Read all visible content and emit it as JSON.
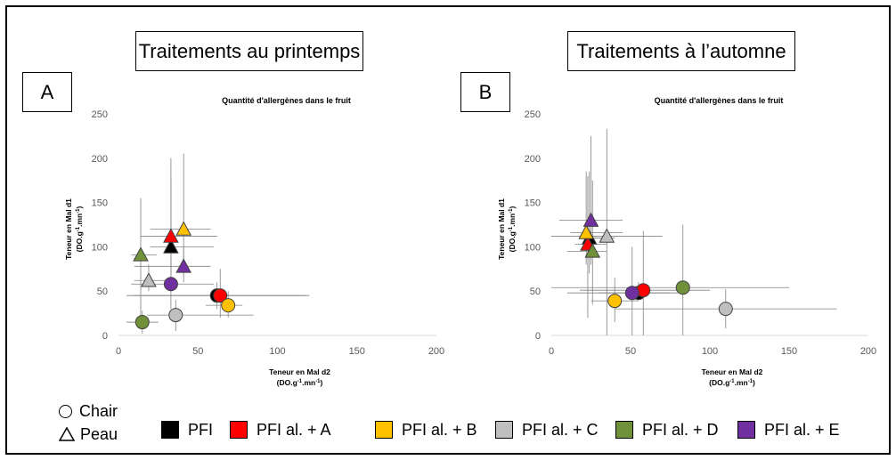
{
  "panels": [
    {
      "letter": "A",
      "title": "Traitements au printemps"
    },
    {
      "letter": "B",
      "title": "Traitements à l’automne"
    }
  ],
  "shapes_legend": [
    {
      "shape": "circle",
      "label": "Chair"
    },
    {
      "shape": "triangle",
      "label": "Peau"
    }
  ],
  "treatments": [
    {
      "label": "PFI",
      "color": "#000000"
    },
    {
      "label": "PFI al. + A",
      "color": "#ff0000"
    },
    {
      "label": "PFI al. + B",
      "color": "#ffc000"
    },
    {
      "label": "PFI al. + C",
      "color": "#bfbfbf"
    },
    {
      "label": "PFI al. + D",
      "color": "#70913a"
    },
    {
      "label": "PFI al. + E",
      "color": "#7030a0"
    }
  ],
  "chart_data": [
    {
      "type": "scatter",
      "title": "Quantité d'allergènes dans le fruit",
      "xlabel_line1": "Teneur en Mal d2",
      "xlabel_line2": "(DO.g-1.mn-1)",
      "ylabel_line1": "Teneur en Mal d1",
      "ylabel_line2": "(DO.g-1.mn-1)",
      "xlim": [
        0,
        200
      ],
      "ylim": [
        0,
        250
      ],
      "xticks": [
        "0",
        "50",
        "100",
        "150",
        "200"
      ],
      "yticks": [
        "0",
        "50",
        "100",
        "150",
        "200",
        "250"
      ],
      "grid": false,
      "points": [
        {
          "treatment": "PFI",
          "shape": "triangle",
          "x": 33,
          "y": 100,
          "xerr": [
            20,
            60
          ],
          "yerr": [
            70,
            130
          ]
        },
        {
          "treatment": "PFI al. + A",
          "shape": "triangle",
          "x": 33,
          "y": 112,
          "xerr": [
            14,
            62
          ],
          "yerr": [
            60,
            200
          ]
        },
        {
          "treatment": "PFI al. + B",
          "shape": "triangle",
          "x": 41,
          "y": 120,
          "xerr": [
            20,
            58
          ],
          "yerr": [
            70,
            205
          ]
        },
        {
          "treatment": "PFI al. + C",
          "shape": "triangle",
          "x": 19,
          "y": 62,
          "xerr": [
            10,
            30
          ],
          "yerr": [
            50,
            80
          ]
        },
        {
          "treatment": "PFI al. + D",
          "shape": "triangle",
          "x": 14,
          "y": 91,
          "xerr": [
            8,
            24
          ],
          "yerr": [
            20,
            155
          ]
        },
        {
          "treatment": "PFI al. + E",
          "shape": "triangle",
          "x": 41,
          "y": 78,
          "xerr": [
            10,
            58
          ],
          "yerr": [
            60,
            100
          ]
        },
        {
          "treatment": "PFI",
          "shape": "circle",
          "x": 62,
          "y": 45,
          "xerr": [
            5,
            120
          ],
          "yerr": [
            30,
            60
          ]
        },
        {
          "treatment": "PFI al. + A",
          "shape": "circle",
          "x": 64,
          "y": 45,
          "xerr": [
            10,
            118
          ],
          "yerr": [
            20,
            75
          ]
        },
        {
          "treatment": "PFI al. + B",
          "shape": "circle",
          "x": 69,
          "y": 34,
          "xerr": [
            55,
            78
          ],
          "yerr": [
            20,
            50
          ]
        },
        {
          "treatment": "PFI al. + C",
          "shape": "circle",
          "x": 36,
          "y": 23,
          "xerr": [
            18,
            85
          ],
          "yerr": [
            5,
            40
          ]
        },
        {
          "treatment": "PFI al. + D",
          "shape": "circle",
          "x": 15,
          "y": 15,
          "xerr": [
            5,
            25
          ],
          "yerr": [
            2,
            28
          ]
        },
        {
          "treatment": "PFI al. + E",
          "shape": "circle",
          "x": 33,
          "y": 58,
          "xerr": [
            8,
            60
          ],
          "yerr": [
            30,
            177
          ]
        }
      ]
    },
    {
      "type": "scatter",
      "title": "Quantité d'allergènes dans le fruit",
      "xlabel_line1": "Teneur en Mal d2",
      "xlabel_line2": "(DO.g-1.mn-1)",
      "ylabel_line1": "Teneur en Mal d1",
      "ylabel_line2": "(DO.g-1.mn-1)",
      "xlim": [
        0,
        200
      ],
      "ylim": [
        0,
        250
      ],
      "xticks": [
        "0",
        "50",
        "100",
        "150",
        "200"
      ],
      "yticks": [
        "0",
        "50",
        "100",
        "150",
        "200",
        "250"
      ],
      "grid": false,
      "points": [
        {
          "treatment": "PFI",
          "shape": "triangle",
          "x": 24,
          "y": 110,
          "xerr": [
            18,
            40
          ],
          "yerr": [
            70,
            185
          ]
        },
        {
          "treatment": "PFI al. + A",
          "shape": "triangle",
          "x": 23,
          "y": 103,
          "xerr": [
            15,
            35
          ],
          "yerr": [
            20,
            180
          ]
        },
        {
          "treatment": "PFI al. + B",
          "shape": "triangle",
          "x": 22,
          "y": 116,
          "xerr": [
            12,
            45
          ],
          "yerr": [
            80,
            185
          ]
        },
        {
          "treatment": "PFI al. + C",
          "shape": "triangle",
          "x": 35,
          "y": 112,
          "xerr": [
            0,
            70
          ],
          "yerr": [
            0,
            233
          ]
        },
        {
          "treatment": "PFI al. + D",
          "shape": "triangle",
          "x": 26,
          "y": 95,
          "xerr": [
            10,
            35
          ],
          "yerr": [
            35,
            175
          ]
        },
        {
          "treatment": "PFI al. + E",
          "shape": "triangle",
          "x": 25,
          "y": 130,
          "xerr": [
            5,
            45
          ],
          "yerr": [
            80,
            225
          ]
        },
        {
          "treatment": "PFI",
          "shape": "circle",
          "x": 55,
          "y": 48,
          "xerr": [
            30,
            80
          ],
          "yerr": [
            40,
            60
          ]
        },
        {
          "treatment": "PFI al. + A",
          "shape": "circle",
          "x": 58,
          "y": 51,
          "xerr": [
            18,
            100
          ],
          "yerr": [
            0,
            118
          ]
        },
        {
          "treatment": "PFI al. + B",
          "shape": "circle",
          "x": 40,
          "y": 39,
          "xerr": [
            25,
            55
          ],
          "yerr": [
            15,
            65
          ]
        },
        {
          "treatment": "PFI al. + C",
          "shape": "circle",
          "x": 110,
          "y": 30,
          "xerr": [
            40,
            180
          ],
          "yerr": [
            8,
            52
          ]
        },
        {
          "treatment": "PFI al. + D",
          "shape": "circle",
          "x": 83,
          "y": 54,
          "xerr": [
            0,
            150
          ],
          "yerr": [
            0,
            125
          ]
        },
        {
          "treatment": "PFI al. + E",
          "shape": "circle",
          "x": 51,
          "y": 48,
          "xerr": [
            10,
            75
          ],
          "yerr": [
            0,
            100
          ]
        }
      ]
    }
  ]
}
